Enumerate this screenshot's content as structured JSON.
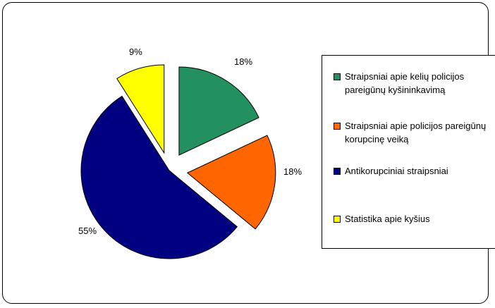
{
  "chart_data": {
    "type": "pie",
    "exploded": true,
    "legend_position": "right",
    "slices": [
      {
        "label": "Straipsniai apie kelių policijos pareigūnų kyšininkavimą",
        "value": 18,
        "pct_label": "18%",
        "color": "#239060"
      },
      {
        "label": "Straipsniai apie policijos pareigūnų korupcinę veiką",
        "value": 18,
        "pct_label": "18%",
        "color": "#ff6600"
      },
      {
        "label": "Antikorupciniai straipsniai",
        "value": 55,
        "pct_label": "55%",
        "color": "#000080"
      },
      {
        "label": "Statistika apie kyšius",
        "value": 9,
        "pct_label": "9%",
        "color": "#ffff00"
      }
    ]
  }
}
